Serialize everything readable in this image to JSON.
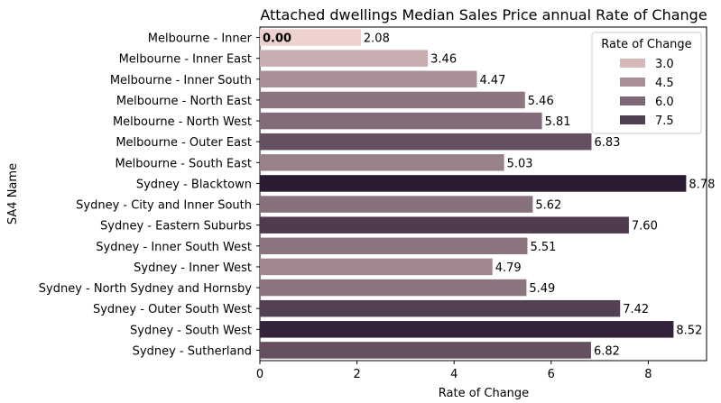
{
  "chart_data": {
    "type": "bar",
    "orientation": "horizontal",
    "title": "Attached dwellings Median Sales Price annual Rate of Change",
    "xlabel": "Rate of Change",
    "ylabel": "SA4 Name",
    "xlim": [
      0,
      9.2
    ],
    "xticks": [
      "0",
      "2",
      "4",
      "6",
      "8"
    ],
    "categories": [
      "Melbourne - Inner",
      "Melbourne - Inner East",
      "Melbourne - Inner South",
      "Melbourne - North East",
      "Melbourne - North West",
      "Melbourne - Outer East",
      "Melbourne - South East",
      "Sydney - Blacktown",
      "Sydney - City and Inner South",
      "Sydney - Eastern Suburbs",
      "Sydney - Inner South West",
      "Sydney - Inner West",
      "Sydney - North Sydney and Hornsby",
      "Sydney - Outer South West",
      "Sydney - South West",
      "Sydney - Sutherland"
    ],
    "values": [
      2.08,
      3.46,
      4.47,
      5.46,
      5.81,
      6.83,
      5.03,
      8.78,
      5.62,
      7.6,
      5.51,
      4.79,
      5.49,
      7.42,
      8.52,
      6.82
    ],
    "value_labels": [
      "2.08",
      "3.46",
      "4.47",
      "5.46",
      "5.81",
      "6.83",
      "5.03",
      "8.78",
      "5.62",
      "7.60",
      "5.51",
      "4.79",
      "5.49",
      "7.42",
      "8.52",
      "6.82"
    ],
    "extra_label": "0.00",
    "legend": {
      "title": "Rate of Change",
      "position": "top-right",
      "entries": [
        "3.0",
        "4.5",
        "6.0",
        "7.5"
      ],
      "entry_values": [
        3.0,
        4.5,
        6.0,
        7.5
      ]
    },
    "color_scale": {
      "low": "#efd1d0",
      "high": "#2b1b33",
      "domain": [
        2.08,
        8.78
      ]
    },
    "grid": false
  }
}
